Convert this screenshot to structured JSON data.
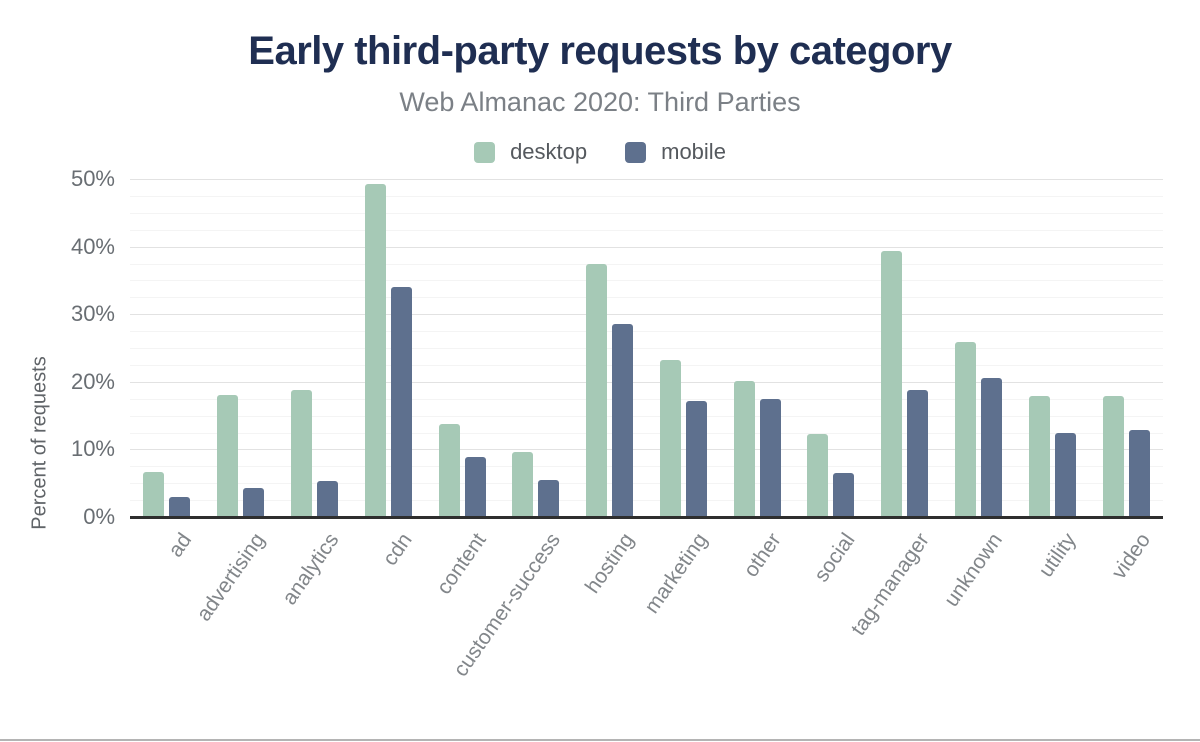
{
  "header": {
    "title": "Early third-party requests by category",
    "subtitle": "Web Almanac 2020: Third Parties"
  },
  "colors": {
    "title": "#1f2e52",
    "subtitle": "#7b8086",
    "desktop_series": "#a6c9b6",
    "mobile_series": "#5e708e",
    "axis_line": "#2e2e2e",
    "tick_text": "#696e73",
    "category_text": "#82868a"
  },
  "chart_data": {
    "type": "bar",
    "title": "Early third-party requests by category",
    "subtitle": "Web Almanac 2020: Third Parties",
    "xlabel": "",
    "ylabel": "Percent of requests",
    "ylim": [
      0,
      50
    ],
    "grid": "on",
    "minor_gridline_step_percent": 2.5,
    "legend_position": "top",
    "yticks": [
      {
        "value": 0,
        "label": "0%"
      },
      {
        "value": 10,
        "label": "10%"
      },
      {
        "value": 20,
        "label": "20%"
      },
      {
        "value": 30,
        "label": "30%"
      },
      {
        "value": 40,
        "label": "40%"
      },
      {
        "value": 50,
        "label": "50%"
      }
    ],
    "categories": [
      "ad",
      "advertising",
      "analytics",
      "cdn",
      "content",
      "customer-success",
      "hosting",
      "marketing",
      "other",
      "social",
      "tag-manager",
      "unknown",
      "utility",
      "video"
    ],
    "series": [
      {
        "name": "desktop",
        "color": "#a6c9b6",
        "values": [
          6.6,
          18.0,
          18.8,
          49.2,
          13.8,
          9.6,
          37.5,
          23.3,
          20.1,
          12.3,
          39.3,
          25.9,
          17.9,
          17.9
        ]
      },
      {
        "name": "mobile",
        "color": "#5e708e",
        "values": [
          3.0,
          4.3,
          5.4,
          34.0,
          8.9,
          5.5,
          28.6,
          17.2,
          17.5,
          6.5,
          18.8,
          20.6,
          12.4,
          12.9
        ]
      }
    ]
  }
}
